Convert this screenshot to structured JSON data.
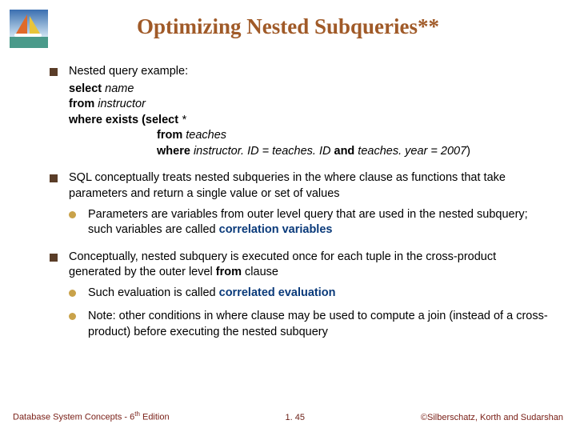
{
  "colors": {
    "title": "#a05a28",
    "square_bullet": "#5a3d28",
    "circle_bullet": "#c9a24a",
    "keyword": "#0a3a7a",
    "text": "#000000",
    "footer": "#7a2018",
    "footer_center": "#6b1f16",
    "logo_sky_top": "#3a6fb0",
    "logo_sky_bottom": "#cfe4f2",
    "logo_sea": "#4a9a8a",
    "logo_sail1": "#e06a2a",
    "logo_sail2": "#e8c43a",
    "logo_hull": "#ffffff"
  },
  "title": "Optimizing Nested Subqueries**",
  "bullets": [
    {
      "intro": "Nested query example:",
      "code": {
        "l1a": "select",
        "l1b": " name",
        "l2a": "from",
        "l2b": " instructor",
        "l3a": "where exists (select",
        "l3b": " *",
        "l4a": "from",
        "l4b": " teaches",
        "l5a": "where",
        "l5b1": " instructor. ID = teaches. ID ",
        "l5c": "and",
        "l5b2": " teaches. year = 2007",
        "l5end": ")"
      }
    },
    {
      "text": " SQL conceptually treats nested subqueries in the where clause as functions that take parameters and return a single value or set of values",
      "sub": [
        {
          "pre": "Parameters are variables from outer level query that are used in the nested subquery; such variables are called ",
          "kw": "correlation variables"
        }
      ]
    },
    {
      "text_pre": " Conceptually, nested subquery is executed once for each tuple in the cross-product generated by the outer level ",
      "text_bold": "from",
      "text_post": " clause",
      "sub": [
        {
          "pre": "Such evaluation is called ",
          "kw": "correlated evaluation"
        },
        {
          "plain": "Note: other conditions in where clause may be used to compute a join (instead of a cross-product) before executing the nested subquery"
        }
      ]
    }
  ],
  "footer": {
    "left_a": "Database System Concepts - 6",
    "left_sup": "th",
    "left_b": " Edition",
    "center": "1. 45",
    "right": "©Silberschatz, Korth and Sudarshan"
  }
}
